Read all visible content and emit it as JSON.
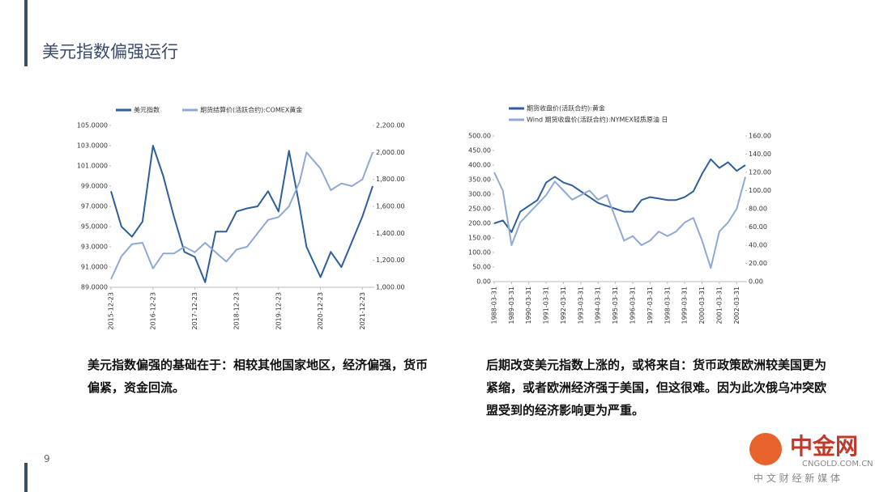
{
  "slide": {
    "title": "美元指数偏强运行",
    "page_number": "9",
    "left_text": "美元指数偏强的基础在于：相较其他国家地区，经济偏强，货币偏紧，资金回流。",
    "right_text": "后期改变美元指数上涨的，或将来自：货币政策欧洲较美国更为紧缩，或者欧洲经济强于美国，但这很难。因为此次俄乌冲突欧盟受到的经济影响更为严重。",
    "logo": "中金网",
    "logo_url": "CNGOLD.COM.CN",
    "logo_slogan": "中 文 财 经 新 媒 体"
  },
  "chart_data": [
    {
      "type": "line",
      "x": [
        "2015-12-23",
        "2016-03-23",
        "2016-06-23",
        "2016-09-23",
        "2016-12-23",
        "2017-03-23",
        "2017-06-23",
        "2017-09-23",
        "2017-12-23",
        "2018-03-23",
        "2018-06-23",
        "2018-09-23",
        "2018-12-23",
        "2019-03-23",
        "2019-06-23",
        "2019-09-23",
        "2019-12-23",
        "2020-03-23",
        "2020-06-23",
        "2020-08-23",
        "2020-12-23",
        "2021-03-23",
        "2021-06-23",
        "2021-09-23",
        "2021-12-23",
        "2022-03-23"
      ],
      "xlim": [
        "2015-12-23",
        "2022-03-23"
      ],
      "xticks": [
        "2015-12-23",
        "2016-12-23",
        "2017-12-23",
        "2018-12-23",
        "2019-12-23",
        "2020-12-23",
        "2021-12-23"
      ],
      "series": [
        {
          "name": "美元指数",
          "color": "#2f5f9a",
          "values": [
            98.5,
            95,
            94,
            95.5,
            103,
            100,
            96,
            92.5,
            92,
            89.5,
            94.5,
            94.5,
            96.5,
            96.8,
            97,
            98.5,
            96.5,
            102.5,
            97,
            93,
            90,
            92.5,
            91,
            93.5,
            96,
            99
          ]
        },
        {
          "name": "期货结算价(活跃合约):COMEX黄金",
          "color": "#8fa9d4",
          "axis": "y2",
          "values": [
            1060,
            1230,
            1320,
            1330,
            1140,
            1250,
            1250,
            1300,
            1260,
            1330,
            1260,
            1190,
            1280,
            1300,
            1400,
            1500,
            1520,
            1600,
            1780,
            2000,
            1880,
            1720,
            1770,
            1750,
            1800,
            2000
          ]
        }
      ],
      "ylim": [
        89,
        105
      ],
      "yticks": [
        {
          "value": 89,
          "label": "89.0000"
        },
        {
          "value": 91,
          "label": "91.0000"
        },
        {
          "value": 93,
          "label": "93.0000"
        },
        {
          "value": 95,
          "label": "95.0000"
        },
        {
          "value": 97,
          "label": "97.0000"
        },
        {
          "value": 99,
          "label": "99.0000"
        },
        {
          "value": 101,
          "label": "101.0000"
        },
        {
          "value": 103,
          "label": "103.0000"
        },
        {
          "value": 105,
          "label": "105.0000"
        }
      ],
      "y2lim": [
        1000,
        2200
      ],
      "y2ticks": [
        {
          "value": 1000,
          "label": "1,000.00"
        },
        {
          "value": 1200,
          "label": "1,200.00"
        },
        {
          "value": 1400,
          "label": "1,400.00"
        },
        {
          "value": 1600,
          "label": "1,600.00"
        },
        {
          "value": 1800,
          "label": "1,800.00"
        },
        {
          "value": 2000,
          "label": "2,000.00"
        },
        {
          "value": 2200,
          "label": "2,200.00"
        }
      ],
      "legend": "top"
    },
    {
      "type": "line",
      "x": [
        "1988-03-31",
        "1988-09-30",
        "1989-03-31",
        "1989-09-30",
        "1990-03-31",
        "1990-09-30",
        "1991-03-31",
        "1991-09-30",
        "1992-03-31",
        "1992-09-30",
        "1993-03-31",
        "1993-09-30",
        "1994-03-31",
        "1994-09-30",
        "1995-03-31",
        "1995-09-30",
        "1996-03-31",
        "1996-09-30",
        "1997-03-31",
        "1997-09-30",
        "1998-03-31",
        "1998-09-30",
        "1999-03-31",
        "1999-09-30",
        "2000-03-31",
        "2000-09-30",
        "2001-03-31",
        "2001-09-30",
        "2002-03-31",
        "2002-09-30"
      ],
      "xlim": [
        "1988-03-31",
        "2002-09-30"
      ],
      "xticks": [
        "1988-03-31",
        "1989-03-31",
        "1990-03-31",
        "1991-03-31",
        "1992-03-31",
        "1993-03-31",
        "1994-03-31",
        "1995-03-31",
        "1996-03-31",
        "1997-03-31",
        "1998-03-31",
        "1999-03-31",
        "2000-03-31",
        "2001-03-31",
        "2002-03-31"
      ],
      "series": [
        {
          "name": "期货收盘价(活跃合约):黄金",
          "color": "#2f5f9a",
          "values": [
            200,
            210,
            170,
            240,
            260,
            280,
            340,
            360,
            340,
            330,
            310,
            290,
            270,
            260,
            250,
            240,
            240,
            280,
            290,
            285,
            280,
            280,
            290,
            310,
            370,
            420,
            390,
            410,
            380,
            400
          ]
        },
        {
          "name": "Wind 期货收盘价(活跃合约):NYMEX轻质原油 日",
          "color": "#8fa9d4",
          "axis": "y2",
          "values": [
            120,
            100,
            40,
            65,
            75,
            85,
            95,
            110,
            100,
            90,
            95,
            100,
            90,
            95,
            70,
            45,
            50,
            40,
            45,
            55,
            50,
            55,
            65,
            70,
            45,
            15,
            55,
            65,
            80,
            115
          ]
        }
      ],
      "ylim": [
        0,
        500
      ],
      "yticks": [
        {
          "value": 0,
          "label": "0.00"
        },
        {
          "value": 50,
          "label": "50.00"
        },
        {
          "value": 100,
          "label": "100.00"
        },
        {
          "value": 150,
          "label": "150.00"
        },
        {
          "value": 200,
          "label": "200.00"
        },
        {
          "value": 250,
          "label": "250.00"
        },
        {
          "value": 300,
          "label": "300.00"
        },
        {
          "value": 350,
          "label": "350.00"
        },
        {
          "value": 400,
          "label": "400.00"
        },
        {
          "value": 450,
          "label": "450.00"
        },
        {
          "value": 500,
          "label": "500.00"
        }
      ],
      "y2lim": [
        0,
        160
      ],
      "y2ticks": [
        {
          "value": 0,
          "label": "0.00"
        },
        {
          "value": 20,
          "label": "20.00"
        },
        {
          "value": 40,
          "label": "40.00"
        },
        {
          "value": 60,
          "label": "60.00"
        },
        {
          "value": 80,
          "label": "80.00"
        },
        {
          "value": 100,
          "label": "100.00"
        },
        {
          "value": 120,
          "label": "120.00"
        },
        {
          "value": 140,
          "label": "140.00"
        },
        {
          "value": 160,
          "label": "160.00"
        }
      ],
      "legend": "top"
    }
  ]
}
